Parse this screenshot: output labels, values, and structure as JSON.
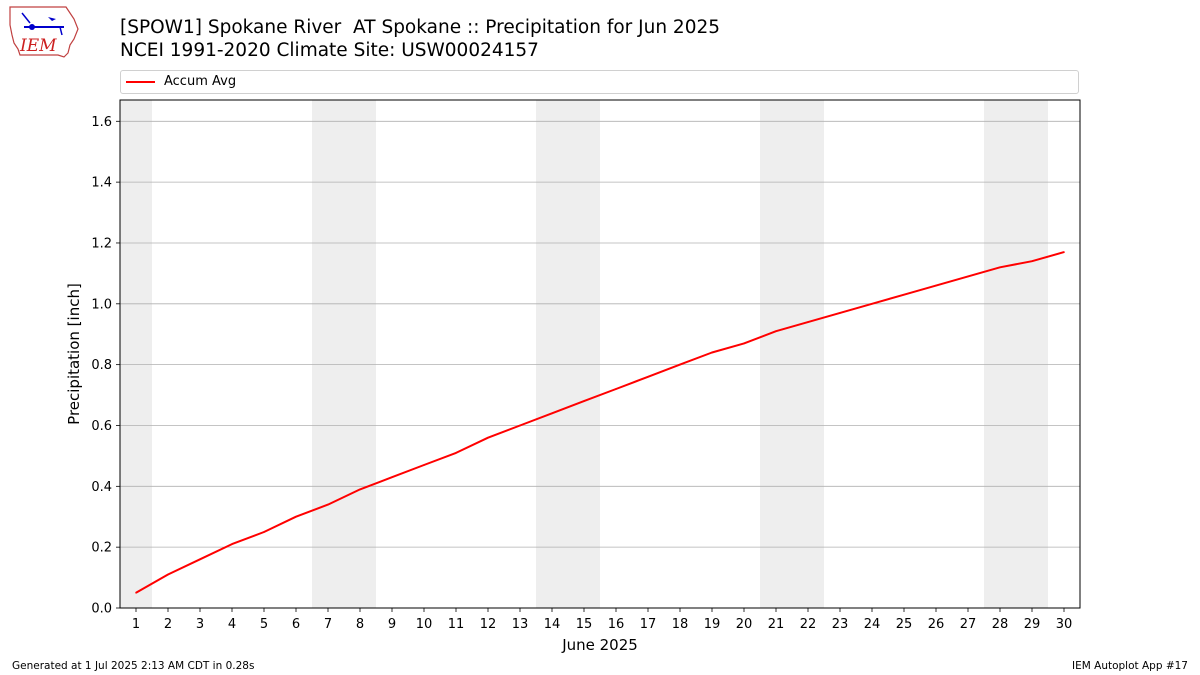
{
  "header": {
    "title_line1": "[SPOW1] Spokane River  AT Spokane :: Precipitation for Jun 2025",
    "title_line2": "NCEI 1991-2020 Climate Site: USW00024157",
    "logo_text": "IEM"
  },
  "footer": {
    "generated": "Generated at 1 Jul 2025 2:13 AM CDT in 0.28s",
    "app": "IEM Autoplot App #17"
  },
  "colors": {
    "line": "#ff0000",
    "weekend_band": "#eeeeee",
    "grid": "#b0b0b0"
  },
  "chart_data": {
    "type": "line",
    "title": "[SPOW1] Spokane River  AT Spokane :: Precipitation for Jun 2025",
    "subtitle": "NCEI 1991-2020 Climate Site: USW00024157",
    "xlabel": "June 2025",
    "ylabel": "Precipitation [inch]",
    "xlim": [
      0.5,
      30.5
    ],
    "ylim": [
      0,
      1.67
    ],
    "x_ticks": [
      1,
      2,
      3,
      4,
      5,
      6,
      7,
      8,
      9,
      10,
      11,
      12,
      13,
      14,
      15,
      16,
      17,
      18,
      19,
      20,
      21,
      22,
      23,
      24,
      25,
      26,
      27,
      28,
      29,
      30
    ],
    "y_ticks": [
      0.0,
      0.2,
      0.4,
      0.6,
      0.8,
      1.0,
      1.2,
      1.4,
      1.6
    ],
    "y_tick_labels": [
      "0.0",
      "0.2",
      "0.4",
      "0.6",
      "0.8",
      "1.0",
      "1.2",
      "1.4",
      "1.6"
    ],
    "grid": "horizontal",
    "legend_position": "top",
    "weekend_bands": [
      [
        0.5,
        1.5
      ],
      [
        6.5,
        8.5
      ],
      [
        13.5,
        15.5
      ],
      [
        20.5,
        22.5
      ],
      [
        27.5,
        29.5
      ]
    ],
    "series": [
      {
        "name": "Accum Avg",
        "color": "#ff0000",
        "x": [
          1,
          2,
          3,
          4,
          5,
          6,
          7,
          8,
          9,
          10,
          11,
          12,
          13,
          14,
          15,
          16,
          17,
          18,
          19,
          20,
          21,
          22,
          23,
          24,
          25,
          26,
          27,
          28,
          29,
          30
        ],
        "values": [
          0.05,
          0.11,
          0.16,
          0.21,
          0.25,
          0.3,
          0.34,
          0.39,
          0.43,
          0.47,
          0.51,
          0.56,
          0.6,
          0.64,
          0.68,
          0.72,
          0.76,
          0.8,
          0.84,
          0.87,
          0.91,
          0.94,
          0.97,
          1.0,
          1.03,
          1.06,
          1.09,
          1.12,
          1.14,
          1.17
        ]
      }
    ]
  }
}
